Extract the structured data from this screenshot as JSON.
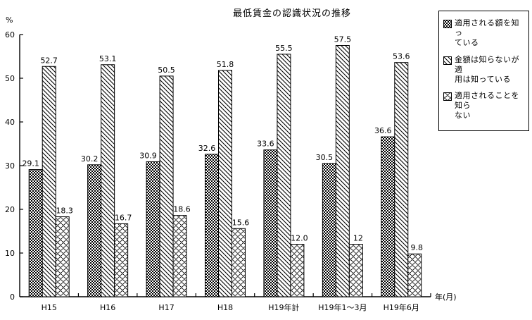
{
  "chart_data": {
    "type": "bar",
    "title": "最低賃金の認識状況の推移",
    "xlabel": "年(月)",
    "ylabel": "%",
    "categories": [
      "H15",
      "H16",
      "H17",
      "H18",
      "H19年計",
      "H19年1～3月",
      "H19年6月"
    ],
    "series": [
      {
        "name": "適用される額を知っている",
        "pattern": "checker",
        "values": [
          29.1,
          30.2,
          30.9,
          32.6,
          33.6,
          30.5,
          36.6
        ],
        "labels": [
          "29.1",
          "30.2",
          "30.9",
          "32.6",
          "33.6",
          "30.5",
          "36.6"
        ]
      },
      {
        "name": "金額は知らないが適用は知っている",
        "pattern": "diagonal",
        "values": [
          52.7,
          53.1,
          50.5,
          51.8,
          55.5,
          57.5,
          53.6
        ],
        "labels": [
          "52.7",
          "53.1",
          "50.5",
          "51.8",
          "55.5",
          "57.5",
          "53.6"
        ]
      },
      {
        "name": "適用されることを知らない",
        "pattern": "wavy",
        "values": [
          18.3,
          16.7,
          18.6,
          15.6,
          12.0,
          12,
          9.8
        ],
        "labels": [
          "18.3",
          "16.7",
          "18.6",
          "15.6",
          "12.0",
          "12",
          "9.8"
        ]
      }
    ],
    "ylim": [
      0,
      60
    ],
    "y_ticks": [
      0,
      10,
      20,
      30,
      40,
      50,
      60
    ],
    "grid": false,
    "legend_position": "right",
    "bar_fill_colors": {
      "stroke": "#000000",
      "background": "#ffffff"
    }
  },
  "legend": {
    "items": [
      {
        "swatch": "checker",
        "lines": [
          "適用される額を知っ",
          "ている"
        ]
      },
      {
        "swatch": "diagonal",
        "lines": [
          "金額は知らないが適",
          "用は知っている"
        ]
      },
      {
        "swatch": "wavy",
        "lines": [
          "適用されることを知ら",
          "ない"
        ]
      }
    ]
  }
}
